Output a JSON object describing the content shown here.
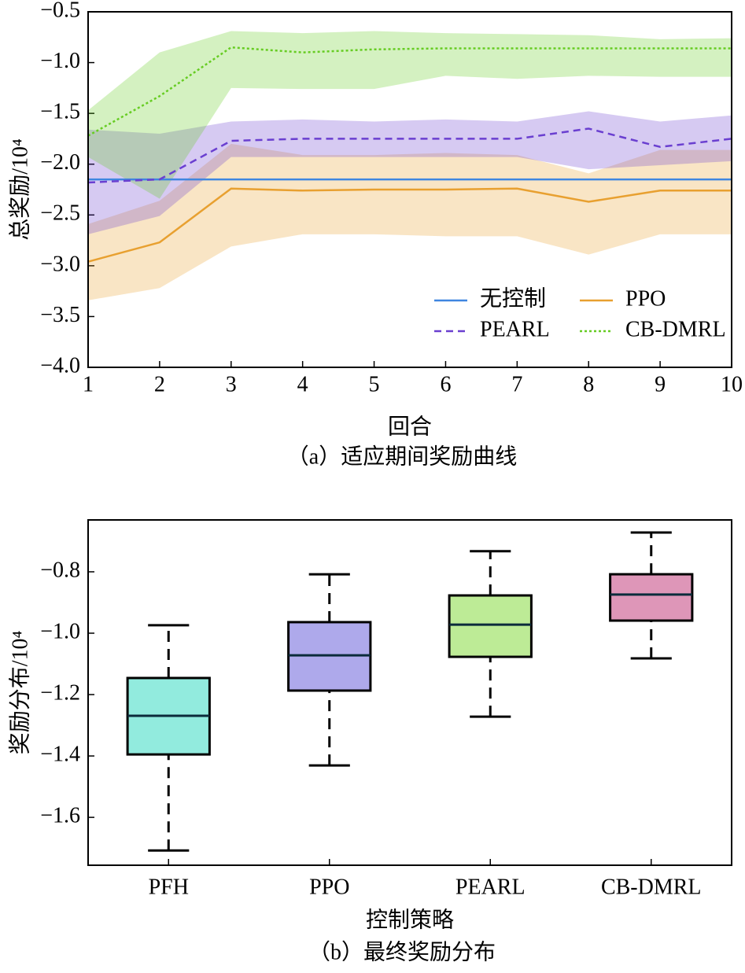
{
  "chart_data": [
    {
      "type": "line",
      "x": [
        1,
        2,
        3,
        4,
        5,
        6,
        7,
        8,
        9,
        10
      ],
      "xlim": [
        1,
        10
      ],
      "xticks": [
        1,
        2,
        3,
        4,
        5,
        6,
        7,
        8,
        9,
        10
      ],
      "ylim": [
        -4.0,
        -0.5
      ],
      "yticks": [
        {
          "value": -4.0,
          "label": "−4.0"
        },
        {
          "value": -3.5,
          "label": "−3.5"
        },
        {
          "value": -3.0,
          "label": "−3.0"
        },
        {
          "value": -2.5,
          "label": "−2.5"
        },
        {
          "value": -2.0,
          "label": "−2.0"
        },
        {
          "value": -1.5,
          "label": "−1.5"
        },
        {
          "value": -1.0,
          "label": "−1.0"
        },
        {
          "value": -0.5,
          "label": "−0.5"
        }
      ],
      "xlabel": "回合",
      "ylabel": "总奖励/10⁴",
      "caption": "（a）适应期间奖励曲线",
      "legend": "lower right",
      "series": [
        {
          "name": "无控制",
          "color": "#3f86e0",
          "linestyle": "solid",
          "values": [
            -2.15,
            -2.15,
            -2.15,
            -2.15,
            -2.15,
            -2.15,
            -2.15,
            -2.15,
            -2.15,
            -2.15
          ]
        },
        {
          "name": "PPO",
          "color": "#e8a030",
          "linestyle": "solid",
          "values": [
            -2.96,
            -2.77,
            -2.24,
            -2.26,
            -2.25,
            -2.25,
            -2.24,
            -2.37,
            -2.26,
            -2.26
          ],
          "lower": [
            -3.34,
            -3.22,
            -2.81,
            -2.69,
            -2.69,
            -2.71,
            -2.71,
            -2.89,
            -2.69,
            -2.69
          ],
          "upper": [
            -2.59,
            -2.36,
            -1.8,
            -1.91,
            -1.91,
            -1.89,
            -1.91,
            -2.09,
            -1.86,
            -1.86
          ]
        },
        {
          "name": "PEARL",
          "color": "#6a3fd0",
          "linestyle": "dashed",
          "values": [
            -2.18,
            -2.15,
            -1.77,
            -1.75,
            -1.75,
            -1.75,
            -1.75,
            -1.65,
            -1.83,
            -1.75
          ],
          "lower": [
            -2.69,
            -2.51,
            -1.93,
            -1.93,
            -1.93,
            -1.93,
            -1.93,
            -2.05,
            -2.01,
            -1.97
          ],
          "upper": [
            -1.66,
            -1.7,
            -1.58,
            -1.56,
            -1.58,
            -1.56,
            -1.58,
            -1.48,
            -1.58,
            -1.52
          ]
        },
        {
          "name": "CB-DMRL",
          "color": "#66cc22",
          "linestyle": "dotted",
          "values": [
            -1.72,
            -1.33,
            -0.85,
            -0.9,
            -0.87,
            -0.86,
            -0.86,
            -0.86,
            -0.86,
            -0.86
          ],
          "lower": [
            -1.93,
            -2.34,
            -1.25,
            -1.26,
            -1.26,
            -1.13,
            -1.16,
            -1.13,
            -1.14,
            -1.14
          ],
          "upper": [
            -1.47,
            -0.9,
            -0.69,
            -0.71,
            -0.69,
            -0.71,
            -0.72,
            -0.73,
            -0.77,
            -0.76
          ]
        }
      ]
    },
    {
      "type": "box",
      "categories": [
        "PFH",
        "PPO",
        "PEARL",
        "CB-DMRL"
      ],
      "colors": [
        "#7fe8d8",
        "#a09ae8",
        "#b2e884",
        "#d884ac"
      ],
      "min": [
        -1.708,
        -1.431,
        -1.272,
        -1.082
      ],
      "q1": [
        -1.395,
        -1.187,
        -1.077,
        -0.959
      ],
      "median": [
        -1.269,
        -1.072,
        -0.972,
        -0.874
      ],
      "q3": [
        -1.146,
        -0.964,
        -0.877,
        -0.808
      ],
      "max": [
        -0.974,
        -0.808,
        -0.733,
        -0.672
      ],
      "ylim": [
        -1.756,
        -0.631
      ],
      "yticks": [
        {
          "value": -1.6,
          "label": "−1.6"
        },
        {
          "value": -1.4,
          "label": "−1.4"
        },
        {
          "value": -1.2,
          "label": "−1.2"
        },
        {
          "value": -1.0,
          "label": "−1.0"
        },
        {
          "value": -0.8,
          "label": "−0.8"
        }
      ],
      "xlabel": "控制策略",
      "ylabel": "奖励分布/10⁴",
      "caption": "（b）最终奖励分布"
    }
  ]
}
